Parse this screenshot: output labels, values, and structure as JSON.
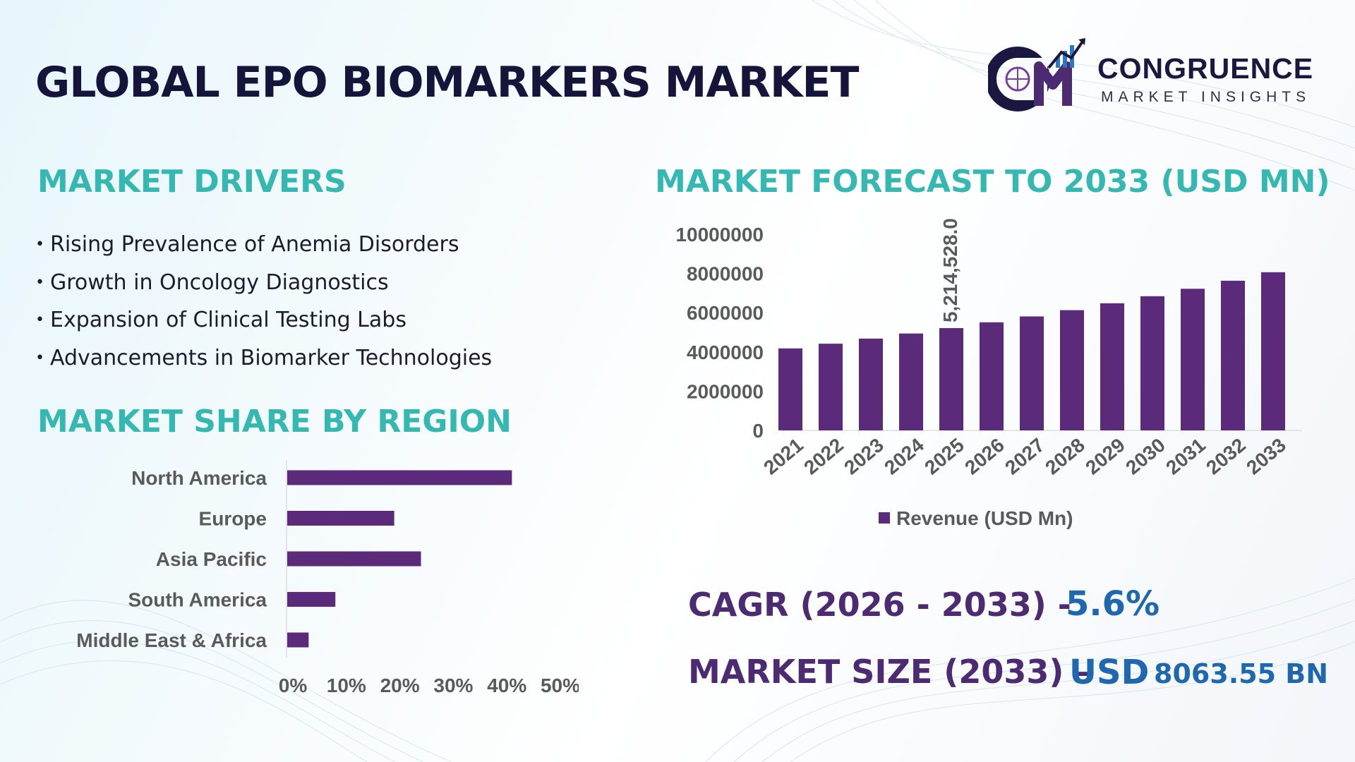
{
  "title": "GLOBAL EPO BIOMARKERS MARKET",
  "logo": {
    "name": "CONGRUENCE",
    "tagline": "MARKET INSIGHTS",
    "mark": "CM"
  },
  "drivers": {
    "heading": "MARKET DRIVERS",
    "items": [
      "Rising Prevalence of Anemia Disorders",
      "Growth in Oncology Diagnostics",
      "Expansion of Clinical Testing Labs",
      "Advancements in Biomarker Technologies"
    ]
  },
  "region": {
    "heading": "MARKET SHARE BY REGION"
  },
  "forecast": {
    "heading": "MARKET FORECAST TO 2033 (USD MN)"
  },
  "kpis": {
    "cagr_label": "CAGR (2026 - 2033) -",
    "cagr_value": "5.6%",
    "size_label": "MARKET SIZE (2033) –",
    "size_currency": "USD",
    "size_value": "8063.55 BN"
  },
  "colors": {
    "bar": "#5b2a7a",
    "heading": "#35b8b1",
    "kpi_label": "#4d2b73",
    "kpi_value": "#1f68b0",
    "title": "#15143a"
  },
  "chart_data": [
    {
      "type": "bar",
      "orientation": "horizontal",
      "title": "MARKET SHARE BY REGION",
      "categories": [
        "North America",
        "Europe",
        "Asia Pacific",
        "South America",
        "Middle East & Africa"
      ],
      "values": [
        42,
        20,
        25,
        9,
        4
      ],
      "unit": "%",
      "xlim": [
        0,
        50
      ],
      "xticks": [
        "0%",
        "10%",
        "20%",
        "30%",
        "40%",
        "50%"
      ],
      "grid": false,
      "legend": "none"
    },
    {
      "type": "bar",
      "orientation": "vertical",
      "title": "MARKET FORECAST TO 2033 (USD MN)",
      "categories": [
        "2021",
        "2022",
        "2023",
        "2024",
        "2025",
        "2026",
        "2027",
        "2028",
        "2029",
        "2030",
        "2031",
        "2032",
        "2033"
      ],
      "series": [
        {
          "name": "Revenue (USD Mn)",
          "values": [
            4180000,
            4420000,
            4680000,
            4940000,
            5214528,
            5510000,
            5810000,
            6130000,
            6480000,
            6840000,
            7220000,
            7630000,
            8063550
          ]
        }
      ],
      "data_labels": [
        {
          "index": 4,
          "text": "5,214,528.0"
        }
      ],
      "ylim": [
        0,
        10000000
      ],
      "yticks": [
        "0",
        "2000000",
        "4000000",
        "6000000",
        "8000000",
        "10000000"
      ],
      "grid": false,
      "legend": "bottom"
    }
  ]
}
